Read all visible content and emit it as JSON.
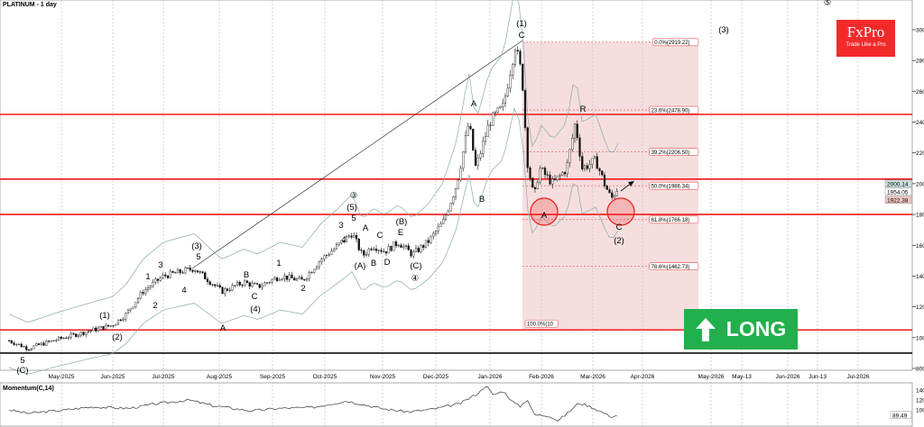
{
  "header": {
    "title": "PLATINUM - 1 day"
  },
  "logo": {
    "brand": "FxPro",
    "tagline": "Trade Like a Pro",
    "color": "#f42a2a"
  },
  "signal": {
    "label": "LONG",
    "icon": "arrow-up-icon",
    "color": "#22b04d"
  },
  "chart_data": [
    {
      "type": "candlestick",
      "title": "PLATINUM - 1 day",
      "y_ticks": [
        "3000.00",
        "2800.00",
        "2600.00",
        "2400.00",
        "2200.00",
        "2000.00",
        "1800.00",
        "1600.00",
        "1400.00",
        "1200.00",
        "1000.00",
        "800.00"
      ],
      "ylim": [
        800,
        3000
      ],
      "x_ticks": [
        "May-2025",
        "Jun-2025",
        "Jul-2025",
        "Aug-2025",
        "Sep-2025",
        "Oct-2025",
        "Nov-2025",
        "Dec-2025",
        "Jan-2026",
        "Feb-2026",
        "Mar-2026",
        "Apr-2026",
        "May-2026",
        "May-13",
        "Jun-2026",
        "Jun-13",
        "Jul-2026"
      ],
      "grid": true,
      "price_path": [
        [
          "2025-04-01",
          980
        ],
        [
          "2025-04-12",
          930
        ],
        [
          "2025-04-28",
          985
        ],
        [
          "2025-05-20",
          1050
        ],
        [
          "2025-05-31",
          1080
        ],
        [
          "2025-06-08",
          1150
        ],
        [
          "2025-06-18",
          1300
        ],
        [
          "2025-06-30",
          1400
        ],
        [
          "2025-07-18",
          1450
        ],
        [
          "2025-08-03",
          1300
        ],
        [
          "2025-08-16",
          1360
        ],
        [
          "2025-08-24",
          1330
        ],
        [
          "2025-09-06",
          1400
        ],
        [
          "2025-09-19",
          1370
        ],
        [
          "2025-09-29",
          1500
        ],
        [
          "2025-10-10",
          1600
        ],
        [
          "2025-10-18",
          1680
        ],
        [
          "2025-10-24",
          1530
        ],
        [
          "2025-10-30",
          1600
        ],
        [
          "2025-11-06",
          1560
        ],
        [
          "2025-11-14",
          1620
        ],
        [
          "2025-11-22",
          1540
        ],
        [
          "2025-12-01",
          1620
        ],
        [
          "2025-12-10",
          1750
        ],
        [
          "2025-12-18",
          2000
        ],
        [
          "2025-12-25",
          2400
        ],
        [
          "2025-12-29",
          2100
        ],
        [
          "2026-01-06",
          2400
        ],
        [
          "2026-01-14",
          2500
        ],
        [
          "2026-01-21",
          2900
        ],
        [
          "2026-01-25",
          2700
        ],
        [
          "2026-01-28",
          2150
        ],
        [
          "2026-02-01",
          1900
        ],
        [
          "2026-02-04",
          2100
        ],
        [
          "2026-02-12",
          2000
        ],
        [
          "2026-02-20",
          2100
        ],
        [
          "2026-02-25",
          2400
        ],
        [
          "2026-03-01",
          2100
        ],
        [
          "2026-03-09",
          2150
        ],
        [
          "2026-03-14",
          2000
        ],
        [
          "2026-03-18",
          1900
        ],
        [
          "2026-03-22",
          1980
        ]
      ],
      "last_prices": [
        "2000.14",
        "1954.05",
        "1922.38"
      ],
      "horizontal_levels": {
        "red": [
          2450,
          2030,
          1800,
          1050
        ],
        "black": [
          900
        ]
      },
      "fibonacci": [
        {
          "label": "0.0%(2919.22)",
          "value": 2919.22
        },
        {
          "label": "23.6%(2478.90)",
          "value": 2478.9
        },
        {
          "label": "39.2%(2206.50)",
          "value": 2206.5
        },
        {
          "label": "50.0%(1986.34)",
          "value": 1986.34
        },
        {
          "label": "61.8%(1766.18)",
          "value": 1766.18
        },
        {
          "label": "78.6%(1462.73)",
          "value": 1462.73
        },
        {
          "label": "100.0%(10",
          "value": 1050
        }
      ],
      "wave_labels": [
        "5",
        "(C)",
        "(1)",
        "(2)",
        "1",
        "2",
        "3",
        "4",
        "(3)",
        "5",
        "A",
        "B",
        "C",
        "(4)",
        "1",
        "2",
        "3",
        "4",
        "(5)",
        "③",
        "5",
        "A",
        "(A)",
        "B",
        "C",
        "D",
        "E",
        "(B)",
        "(C)",
        "④",
        "A",
        "B",
        "(1)",
        "C",
        "(3)",
        "⑤",
        "R",
        "A",
        "C",
        "(2)"
      ]
    },
    {
      "type": "line",
      "title": "Momentum(C,14)",
      "y_ticks": [
        "140.00",
        "120.00",
        "100.00"
      ],
      "last_value": "89.49",
      "values_path": [
        [
          "2025-04-01",
          100
        ],
        [
          "2025-04-12",
          93
        ],
        [
          "2025-04-28",
          98
        ],
        [
          "2025-05-20",
          106
        ],
        [
          "2025-06-10",
          103
        ],
        [
          "2025-06-25",
          112
        ],
        [
          "2025-07-15",
          120
        ],
        [
          "2025-07-28",
          109
        ],
        [
          "2025-08-20",
          98
        ],
        [
          "2025-09-05",
          103
        ],
        [
          "2025-09-25",
          105
        ],
        [
          "2025-10-15",
          118
        ],
        [
          "2025-11-05",
          102
        ],
        [
          "2025-11-20",
          96
        ],
        [
          "2025-12-05",
          102
        ],
        [
          "2025-12-20",
          113
        ],
        [
          "2025-12-31",
          135
        ],
        [
          "2026-01-04",
          150
        ],
        [
          "2026-01-08",
          130
        ],
        [
          "2026-01-14",
          138
        ],
        [
          "2026-01-20",
          115
        ],
        [
          "2026-01-24",
          107
        ],
        [
          "2026-01-28",
          122
        ],
        [
          "2026-02-01",
          90
        ],
        [
          "2026-02-10",
          88
        ],
        [
          "2026-02-15",
          78
        ],
        [
          "2026-02-20",
          92
        ],
        [
          "2026-02-27",
          114
        ],
        [
          "2026-03-04",
          109
        ],
        [
          "2026-03-10",
          100
        ],
        [
          "2026-03-18",
          86
        ],
        [
          "2026-03-22",
          89.49
        ]
      ]
    }
  ]
}
